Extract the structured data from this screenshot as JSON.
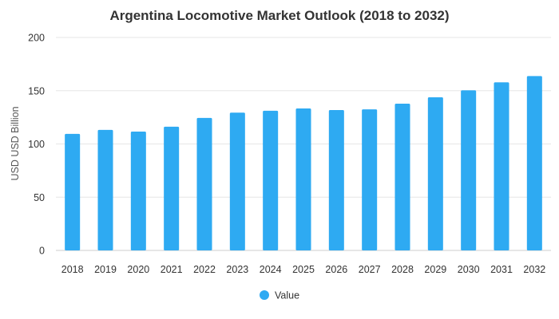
{
  "chart_data": {
    "type": "bar",
    "title": "Argentina Locomotive Market Outlook (2018 to 2032)",
    "xlabel": "",
    "ylabel": "USD USD Billion",
    "ylim": [
      0,
      200
    ],
    "yticks": [
      0,
      50,
      100,
      150,
      200
    ],
    "grid": true,
    "legend_position": "bottom",
    "categories": [
      "2018",
      "2019",
      "2020",
      "2021",
      "2022",
      "2023",
      "2024",
      "2025",
      "2026",
      "2027",
      "2028",
      "2029",
      "2030",
      "2031",
      "2032"
    ],
    "series": [
      {
        "name": "Value",
        "color": "#2eaaf2",
        "values": [
          109.5,
          113.2,
          111.6,
          116.2,
          124.4,
          129.4,
          131.2,
          133.3,
          131.8,
          132.5,
          137.8,
          143.8,
          150.4,
          157.9,
          163.8
        ]
      }
    ]
  }
}
